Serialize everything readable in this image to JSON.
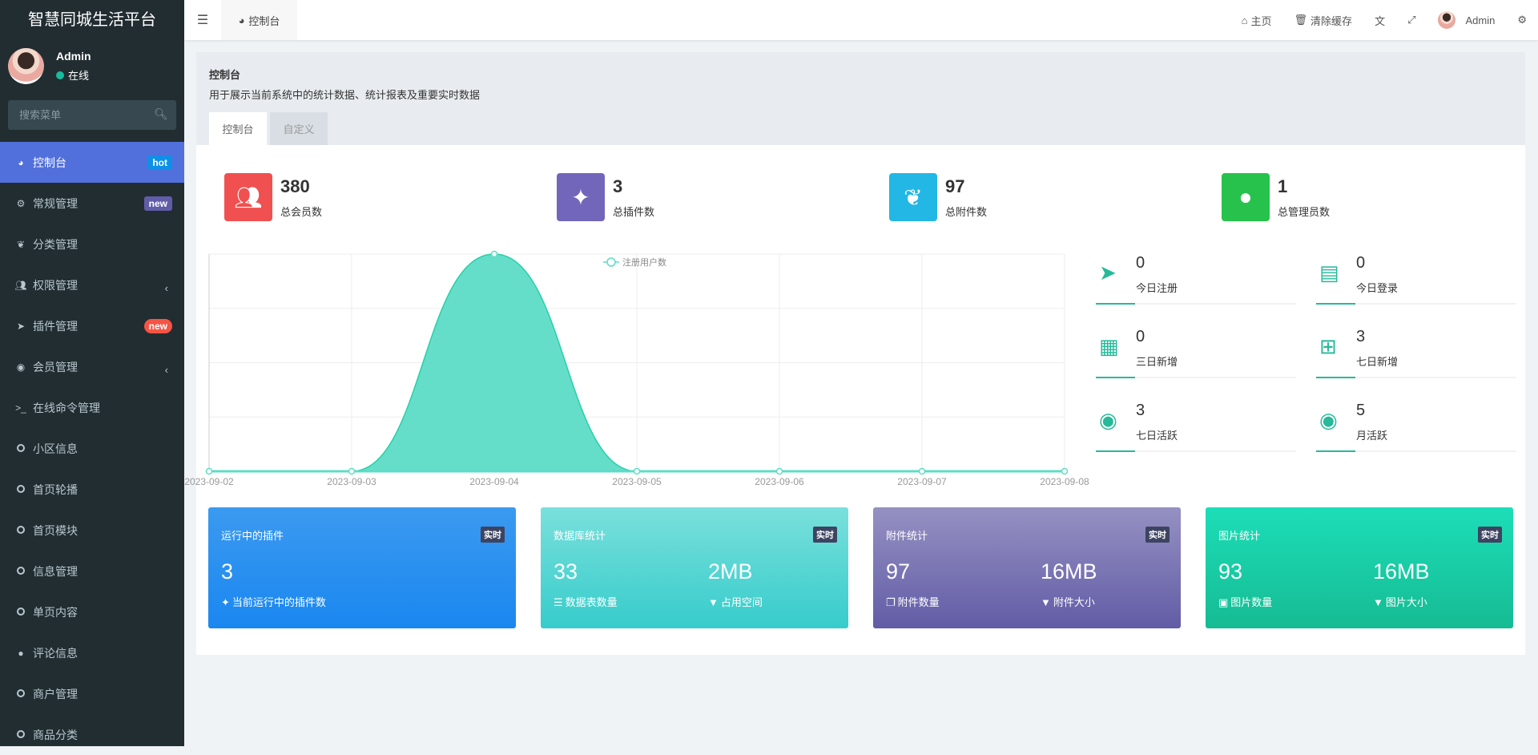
{
  "app": {
    "title": "智慧同城生活平台"
  },
  "user": {
    "name": "Admin",
    "status": "在线"
  },
  "search": {
    "placeholder": "搜索菜单",
    "icon": "search-icon"
  },
  "menu": [
    {
      "label": "控制台",
      "icon": "dashboard-icon",
      "badge": "hot",
      "badge_color": "#0e90e8",
      "active": true
    },
    {
      "label": "常规管理",
      "icon": "cogs-icon",
      "badge": "new",
      "badge_color": "#605ca8"
    },
    {
      "label": "分类管理",
      "icon": "leaf-icon"
    },
    {
      "label": "权限管理",
      "icon": "users-icon",
      "chevron": true
    },
    {
      "label": "插件管理",
      "icon": "rocket-icon",
      "badge": "new",
      "badge_color": "#f75444"
    },
    {
      "label": "会员管理",
      "icon": "user-circle-icon",
      "chevron": true
    },
    {
      "label": "在线命令管理",
      "icon": "terminal-icon"
    },
    {
      "label": "小区信息",
      "icon": "circle-icon"
    },
    {
      "label": "首页轮播",
      "icon": "circle-icon"
    },
    {
      "label": "首页模块",
      "icon": "circle-icon"
    },
    {
      "label": "信息管理",
      "icon": "circle-icon"
    },
    {
      "label": "单页内容",
      "icon": "circle-icon"
    },
    {
      "label": "评论信息",
      "icon": "comment-icon"
    },
    {
      "label": "商户管理",
      "icon": "circle-icon"
    },
    {
      "label": "商品分类",
      "icon": "circle-icon"
    }
  ],
  "topbar": {
    "tab": "控制台",
    "home": "主页",
    "clear_cache": "清除缓存",
    "user": "Admin"
  },
  "page": {
    "title": "控制台",
    "description": "用于展示当前系统中的统计数据、统计报表及重要实时数据",
    "tabs": [
      "控制台",
      "自定义"
    ]
  },
  "stats": [
    {
      "value": "380",
      "label": "总会员数",
      "color": "#f05050",
      "icon": "users-icon"
    },
    {
      "value": "3",
      "label": "总插件数",
      "color": "#7266ba",
      "icon": "magic-icon"
    },
    {
      "value": "97",
      "label": "总附件数",
      "color": "#23b7e5",
      "icon": "leaf-icon"
    },
    {
      "value": "1",
      "label": "总管理员数",
      "color": "#27c24c",
      "icon": "user-icon"
    }
  ],
  "side_stats": [
    {
      "value": "0",
      "label": "今日注册",
      "icon": "rocket-icon"
    },
    {
      "value": "0",
      "label": "今日登录",
      "icon": "id-card-icon"
    },
    {
      "value": "0",
      "label": "三日新增",
      "icon": "calendar-icon"
    },
    {
      "value": "3",
      "label": "七日新增",
      "icon": "calendar-plus-icon"
    },
    {
      "value": "3",
      "label": "七日活跃",
      "icon": "user-circle-icon"
    },
    {
      "value": "5",
      "label": "月活跃",
      "icon": "user-circle-icon"
    }
  ],
  "chart_data": {
    "type": "area",
    "categories": [
      "2023-09-02",
      "2023-09-03",
      "2023-09-04",
      "2023-09-05",
      "2023-09-06",
      "2023-09-07",
      "2023-09-08"
    ],
    "series": [
      {
        "name": "注册用户数",
        "values": [
          0,
          0,
          3,
          0,
          0,
          0,
          0
        ]
      }
    ],
    "ylim": [
      0,
      3
    ],
    "grid": true,
    "legend": "top-center",
    "smooth": true,
    "color": "#26d0a8"
  },
  "cards": [
    {
      "title": "运行中的插件",
      "tag": "实时",
      "items": [
        {
          "value": "3",
          "label": "当前运行中的插件数",
          "icon": "magic-icon"
        }
      ],
      "gradient": [
        "#3b9af0",
        "#1a87f0"
      ]
    },
    {
      "title": "数据库统计",
      "tag": "实时",
      "items": [
        {
          "value": "33",
          "label": "数据表数量",
          "icon": "database-icon"
        },
        {
          "value": "2MB",
          "label": "占用空间",
          "icon": "filter-icon"
        }
      ],
      "gradient": [
        "#7ae0dc",
        "#36cccb"
      ]
    },
    {
      "title": "附件统计",
      "tag": "实时",
      "items": [
        {
          "value": "97",
          "label": "附件数量",
          "icon": "files-icon"
        },
        {
          "value": "16MB",
          "label": "附件大小",
          "icon": "filter-icon"
        }
      ],
      "gradient": [
        "#9591c2",
        "#625ca6"
      ]
    },
    {
      "title": "图片统计",
      "tag": "实时",
      "items": [
        {
          "value": "93",
          "label": "图片数量",
          "icon": "image-icon"
        },
        {
          "value": "16MB",
          "label": "图片大小",
          "icon": "filter-icon"
        }
      ],
      "gradient": [
        "#1cdeb8",
        "#16bb93"
      ]
    }
  ]
}
